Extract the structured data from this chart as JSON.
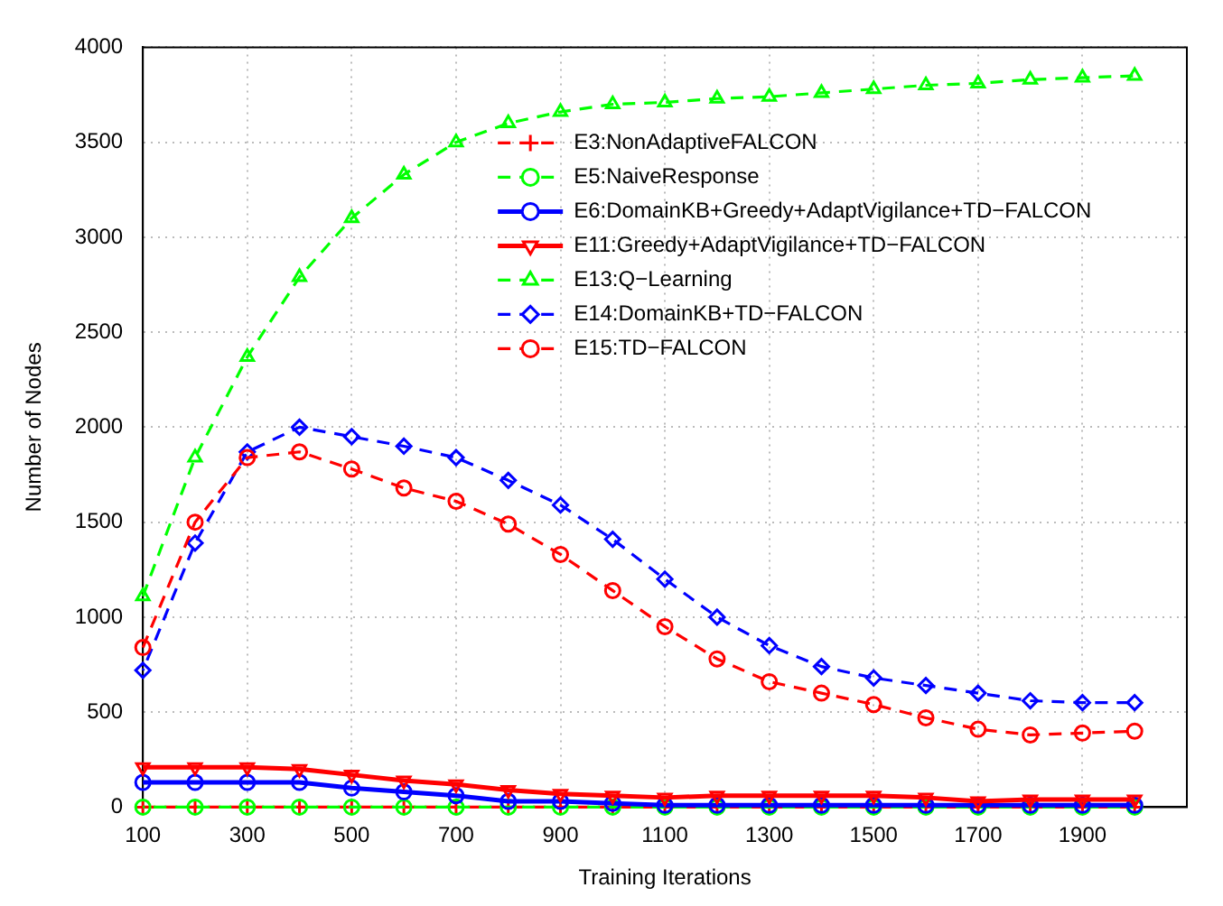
{
  "chart_data": {
    "type": "line",
    "xlabel": "Training Iterations",
    "ylabel": "Number of Nodes",
    "x": [
      100,
      200,
      300,
      400,
      500,
      600,
      700,
      800,
      900,
      1000,
      1100,
      1200,
      1300,
      1400,
      1500,
      1600,
      1700,
      1800,
      1900,
      2000
    ],
    "xlim": [
      100,
      2100
    ],
    "xticks": [
      100,
      300,
      500,
      700,
      900,
      1100,
      1300,
      1500,
      1700,
      1900
    ],
    "ylim": [
      0,
      4000
    ],
    "yticks": [
      0,
      500,
      1000,
      1500,
      2000,
      2500,
      3000,
      3500,
      4000
    ],
    "grid": true,
    "legend": "top",
    "series": [
      {
        "name": "E3:NonAdaptiveFALCON",
        "color": "#ff0000",
        "marker": "cross",
        "line_style": "dashed",
        "values": [
          0,
          0,
          0,
          0,
          0,
          0,
          0,
          0,
          0,
          0,
          0,
          0,
          0,
          0,
          0,
          0,
          0,
          0,
          0,
          0
        ]
      },
      {
        "name": "E5:NaiveResponse",
        "color": "#00ff00",
        "marker": "circle",
        "line_style": "dashed",
        "values": [
          0,
          0,
          0,
          0,
          0,
          0,
          0,
          0,
          0,
          0,
          0,
          0,
          0,
          0,
          0,
          0,
          0,
          0,
          0,
          0
        ]
      },
      {
        "name": "E6:DomainKB+Greedy+AdaptVigilance+TD−FALCON",
        "color": "#0000ff",
        "marker": "circle",
        "line_style": "solid",
        "values": [
          130,
          130,
          130,
          130,
          100,
          80,
          60,
          30,
          30,
          20,
          10,
          10,
          10,
          10,
          10,
          10,
          10,
          10,
          10,
          10
        ]
      },
      {
        "name": "E11:Greedy+AdaptVigilance+TD−FALCON",
        "color": "#ff0000",
        "marker": "triangle-down",
        "line_style": "solid",
        "values": [
          210,
          210,
          210,
          200,
          170,
          140,
          120,
          90,
          70,
          60,
          50,
          60,
          60,
          60,
          60,
          50,
          30,
          40,
          40,
          40
        ]
      },
      {
        "name": "E13:Q−Learning",
        "color": "#00ff00",
        "marker": "triangle",
        "line_style": "dashed",
        "values": [
          1110,
          1840,
          2370,
          2790,
          3100,
          3330,
          3500,
          3600,
          3660,
          3700,
          3710,
          3730,
          3740,
          3760,
          3780,
          3800,
          3810,
          3830,
          3840,
          3850
        ]
      },
      {
        "name": "E14:DomainKB+TD−FALCON",
        "color": "#0000ff",
        "marker": "diamond",
        "line_style": "dashed",
        "values": [
          720,
          1390,
          1870,
          2000,
          1950,
          1900,
          1840,
          1720,
          1590,
          1410,
          1200,
          1000,
          850,
          740,
          680,
          640,
          600,
          560,
          550,
          550
        ]
      },
      {
        "name": "E15:TD−FALCON",
        "color": "#ff0000",
        "marker": "circle",
        "line_style": "dashed",
        "values": [
          840,
          1500,
          1840,
          1870,
          1780,
          1680,
          1610,
          1490,
          1330,
          1140,
          950,
          780,
          660,
          600,
          540,
          470,
          410,
          380,
          390,
          400
        ]
      }
    ]
  }
}
